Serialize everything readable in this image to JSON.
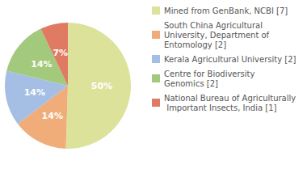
{
  "chart_data": {
    "type": "pie",
    "categories": [
      "Mined from GenBank, NCBI [7]",
      "South China Agricultural University, Department of Entomology [2]",
      "Kerala Agricultural University [2]",
      "Centre for Biodiversity Genomics [2]",
      "National Bureau of Agriculturally Important Insects, India [1]"
    ],
    "values": [
      50,
      14,
      14,
      14,
      7
    ],
    "value_labels": [
      "50%",
      "14%",
      "14%",
      "14%",
      "7%"
    ],
    "colors": [
      "#dde29b",
      "#f0ad79",
      "#a4bfe3",
      "#a2c97c",
      "#e07a62"
    ],
    "data_labels": true,
    "legend": "right"
  }
}
